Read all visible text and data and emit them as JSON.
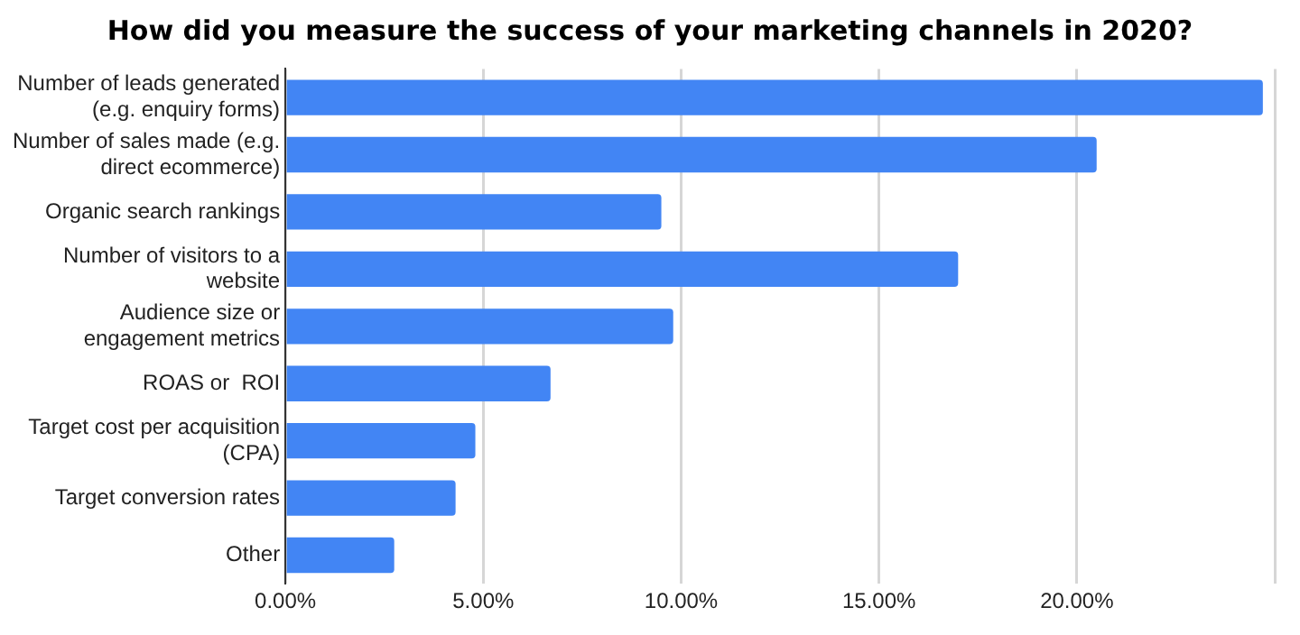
{
  "chart_data": {
    "type": "bar",
    "orientation": "horizontal",
    "title": "How did you measure the success of your marketing channels in 2020?",
    "categories": [
      "Number of leads generated\n(e.g. enquiry forms)",
      "Number of sales made (e.g.\ndirect ecommerce)",
      "Organic search rankings",
      "Number of visitors to a\nwebsite",
      "Audience size or\nengagement metrics",
      "ROAS or  ROI",
      "Target cost per acquisition\n(CPA)",
      "Target conversion rates",
      "Other"
    ],
    "values": [
      24.7,
      20.5,
      9.5,
      17.0,
      9.8,
      6.7,
      4.8,
      4.3,
      2.75
    ],
    "color": "#4285f4",
    "xlim": [
      0,
      25
    ],
    "xticks": [
      {
        "value": 0,
        "label": "0.00%"
      },
      {
        "value": 5,
        "label": "5.00%"
      },
      {
        "value": 10,
        "label": "10.00%"
      },
      {
        "value": 15,
        "label": "15.00%"
      },
      {
        "value": 20,
        "label": "20.00%"
      },
      {
        "value": 25,
        "label": null
      }
    ],
    "grid": "x",
    "legend": false
  }
}
